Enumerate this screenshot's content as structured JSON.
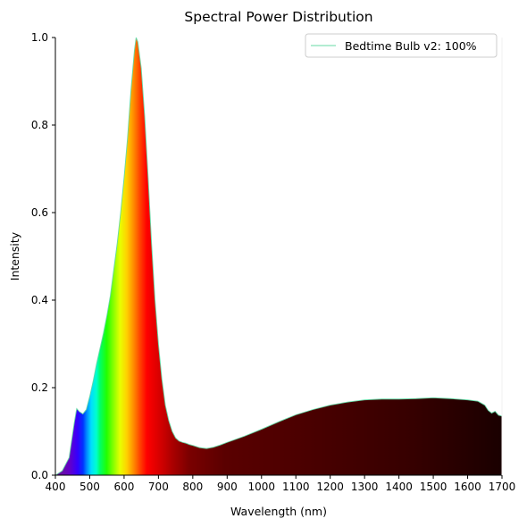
{
  "chart_data": {
    "type": "area",
    "title": "Spectral Power Distribution",
    "xlabel": "Wavelength (nm)",
    "ylabel": "Intensity",
    "xlim": [
      400,
      1700
    ],
    "ylim": [
      0,
      1.0
    ],
    "xticks": [
      400,
      500,
      600,
      700,
      800,
      900,
      1000,
      1100,
      1200,
      1300,
      1400,
      1500,
      1600,
      1700
    ],
    "yticks": [
      "0.0",
      "0.2",
      "0.4",
      "0.6",
      "0.8",
      "1.0"
    ],
    "grid": false,
    "legend_position": "top-right",
    "fill": "wavelength-colored spectrum",
    "line_color": "#66d9a6",
    "series": [
      {
        "name": "Bedtime Bulb v2: 100%",
        "x": [
          400,
          420,
          440,
          455,
          462,
          470,
          480,
          490,
          500,
          510,
          520,
          530,
          540,
          550,
          560,
          570,
          580,
          590,
          600,
          610,
          620,
          630,
          635,
          640,
          650,
          660,
          670,
          680,
          690,
          700,
          710,
          720,
          730,
          740,
          750,
          760,
          770,
          780,
          790,
          800,
          820,
          840,
          860,
          880,
          900,
          950,
          1000,
          1050,
          1100,
          1150,
          1200,
          1250,
          1300,
          1350,
          1400,
          1450,
          1500,
          1550,
          1600,
          1630,
          1650,
          1660,
          1670,
          1680,
          1690,
          1700
        ],
        "y": [
          0.0,
          0.01,
          0.04,
          0.12,
          0.152,
          0.145,
          0.14,
          0.15,
          0.18,
          0.215,
          0.255,
          0.29,
          0.325,
          0.365,
          0.41,
          0.47,
          0.53,
          0.6,
          0.68,
          0.77,
          0.88,
          0.97,
          1.0,
          0.99,
          0.93,
          0.82,
          0.68,
          0.53,
          0.4,
          0.3,
          0.22,
          0.16,
          0.125,
          0.1,
          0.085,
          0.078,
          0.075,
          0.073,
          0.07,
          0.068,
          0.063,
          0.061,
          0.064,
          0.069,
          0.075,
          0.089,
          0.105,
          0.122,
          0.138,
          0.15,
          0.16,
          0.167,
          0.172,
          0.174,
          0.174,
          0.175,
          0.177,
          0.175,
          0.172,
          0.169,
          0.16,
          0.148,
          0.142,
          0.146,
          0.137,
          0.135
        ]
      }
    ]
  }
}
